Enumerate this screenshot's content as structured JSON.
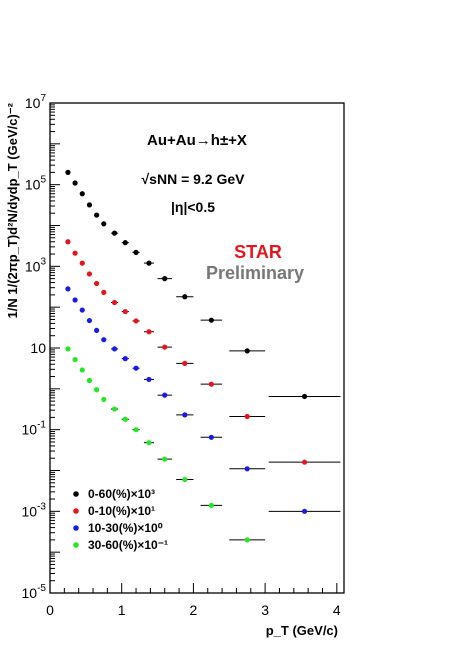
{
  "chart_data": {
    "type": "scatter",
    "title": "",
    "xlabel": "p_T (GeV/c)",
    "ylabel": "1/N 1/(2πp_T)d²N/dydp_T (GeV/c)⁻²",
    "xlim": [
      0,
      4.1
    ],
    "ylim": [
      1e-05,
      10000000.0
    ],
    "yscale": "log",
    "grid": false,
    "legend_position": "bottom-left",
    "x_ticks": [
      "0",
      "1",
      "2",
      "3",
      "4"
    ],
    "y_ticks": [
      {
        "base": "10",
        "exp": "7",
        "value": 10000000.0
      },
      {
        "base": "10",
        "exp": "5",
        "value": 100000.0
      },
      {
        "base": "10",
        "exp": "3",
        "value": 1000.0
      },
      {
        "base": "10",
        "exp": "",
        "value": 10
      },
      {
        "base": "10",
        "exp": "-1",
        "value": 0.1
      },
      {
        "base": "10",
        "exp": "-3",
        "value": 0.001
      },
      {
        "base": "10",
        "exp": "-5",
        "value": 1e-05
      }
    ],
    "annotations": {
      "reaction": "Au+Au→h±+X",
      "energy": "√sNN = 9.2 GeV",
      "eta": "|η|<0.5",
      "star": "STAR",
      "preliminary": "Preliminary"
    },
    "series": [
      {
        "name": "0-60(%)×10³",
        "color": "#000000",
        "points": [
          {
            "x": 0.25,
            "y": 200000,
            "xerr": 0
          },
          {
            "x": 0.35,
            "y": 110000,
            "xerr": 0
          },
          {
            "x": 0.45,
            "y": 60000,
            "xerr": 0
          },
          {
            "x": 0.55,
            "y": 32000,
            "xerr": 0
          },
          {
            "x": 0.65,
            "y": 18000,
            "xerr": 0
          },
          {
            "x": 0.75,
            "y": 11000,
            "xerr": 0
          },
          {
            "x": 0.9,
            "y": 6500,
            "xerr": 0.05
          },
          {
            "x": 1.05,
            "y": 3800,
            "xerr": 0.05
          },
          {
            "x": 1.2,
            "y": 2200,
            "xerr": 0.05
          },
          {
            "x": 1.38,
            "y": 1200,
            "xerr": 0.07
          },
          {
            "x": 1.6,
            "y": 500,
            "xerr": 0.1
          },
          {
            "x": 1.88,
            "y": 180,
            "xerr": 0.12
          },
          {
            "x": 2.25,
            "y": 48,
            "xerr": 0.15
          },
          {
            "x": 2.75,
            "y": 8.5,
            "xerr": 0.25
          },
          {
            "x": 3.55,
            "y": 0.65,
            "xerr": 0.5
          }
        ]
      },
      {
        "name": "0-10(%)×10¹",
        "color": "#e8141c",
        "points": [
          {
            "x": 0.25,
            "y": 4000,
            "xerr": 0
          },
          {
            "x": 0.35,
            "y": 2100,
            "xerr": 0
          },
          {
            "x": 0.45,
            "y": 1200,
            "xerr": 0
          },
          {
            "x": 0.55,
            "y": 650,
            "xerr": 0
          },
          {
            "x": 0.65,
            "y": 380,
            "xerr": 0
          },
          {
            "x": 0.75,
            "y": 230,
            "xerr": 0
          },
          {
            "x": 0.9,
            "y": 130,
            "xerr": 0.05
          },
          {
            "x": 1.05,
            "y": 78,
            "xerr": 0.05
          },
          {
            "x": 1.2,
            "y": 46,
            "xerr": 0.05
          },
          {
            "x": 1.38,
            "y": 25,
            "xerr": 0.07
          },
          {
            "x": 1.6,
            "y": 10.5,
            "xerr": 0.1
          },
          {
            "x": 1.88,
            "y": 4.2,
            "xerr": 0.12
          },
          {
            "x": 2.25,
            "y": 1.3,
            "xerr": 0.15
          },
          {
            "x": 2.75,
            "y": 0.21,
            "xerr": 0.25
          },
          {
            "x": 3.55,
            "y": 0.016,
            "xerr": 0.5
          }
        ]
      },
      {
        "name": "10-30(%)×10⁰",
        "color": "#1a1ae8",
        "points": [
          {
            "x": 0.25,
            "y": 280,
            "xerr": 0
          },
          {
            "x": 0.35,
            "y": 150,
            "xerr": 0
          },
          {
            "x": 0.45,
            "y": 85,
            "xerr": 0
          },
          {
            "x": 0.55,
            "y": 47,
            "xerr": 0
          },
          {
            "x": 0.65,
            "y": 27,
            "xerr": 0
          },
          {
            "x": 0.75,
            "y": 16,
            "xerr": 0
          },
          {
            "x": 0.9,
            "y": 9.5,
            "xerr": 0.05
          },
          {
            "x": 1.05,
            "y": 5.5,
            "xerr": 0.05
          },
          {
            "x": 1.2,
            "y": 3.2,
            "xerr": 0.05
          },
          {
            "x": 1.38,
            "y": 1.7,
            "xerr": 0.07
          },
          {
            "x": 1.6,
            "y": 0.7,
            "xerr": 0.1
          },
          {
            "x": 1.88,
            "y": 0.23,
            "xerr": 0.12
          },
          {
            "x": 2.25,
            "y": 0.065,
            "xerr": 0.15
          },
          {
            "x": 2.75,
            "y": 0.011,
            "xerr": 0.25
          },
          {
            "x": 3.55,
            "y": 0.001,
            "xerr": 0.5
          }
        ]
      },
      {
        "name": "30-60(%)×10⁻¹",
        "color": "#22e822",
        "points": [
          {
            "x": 0.25,
            "y": 9.5,
            "xerr": 0
          },
          {
            "x": 0.35,
            "y": 5.2,
            "xerr": 0
          },
          {
            "x": 0.45,
            "y": 2.9,
            "xerr": 0
          },
          {
            "x": 0.55,
            "y": 1.6,
            "xerr": 0
          },
          {
            "x": 0.65,
            "y": 0.95,
            "xerr": 0
          },
          {
            "x": 0.75,
            "y": 0.55,
            "xerr": 0
          },
          {
            "x": 0.9,
            "y": 0.32,
            "xerr": 0.05
          },
          {
            "x": 1.05,
            "y": 0.18,
            "xerr": 0.05
          },
          {
            "x": 1.2,
            "y": 0.1,
            "xerr": 0.05
          },
          {
            "x": 1.38,
            "y": 0.048,
            "xerr": 0.07
          },
          {
            "x": 1.6,
            "y": 0.019,
            "xerr": 0.1
          },
          {
            "x": 1.88,
            "y": 0.006,
            "xerr": 0.12
          },
          {
            "x": 2.25,
            "y": 0.0014,
            "xerr": 0.15
          },
          {
            "x": 2.75,
            "y": 0.0002,
            "xerr": 0.25
          }
        ]
      }
    ]
  }
}
